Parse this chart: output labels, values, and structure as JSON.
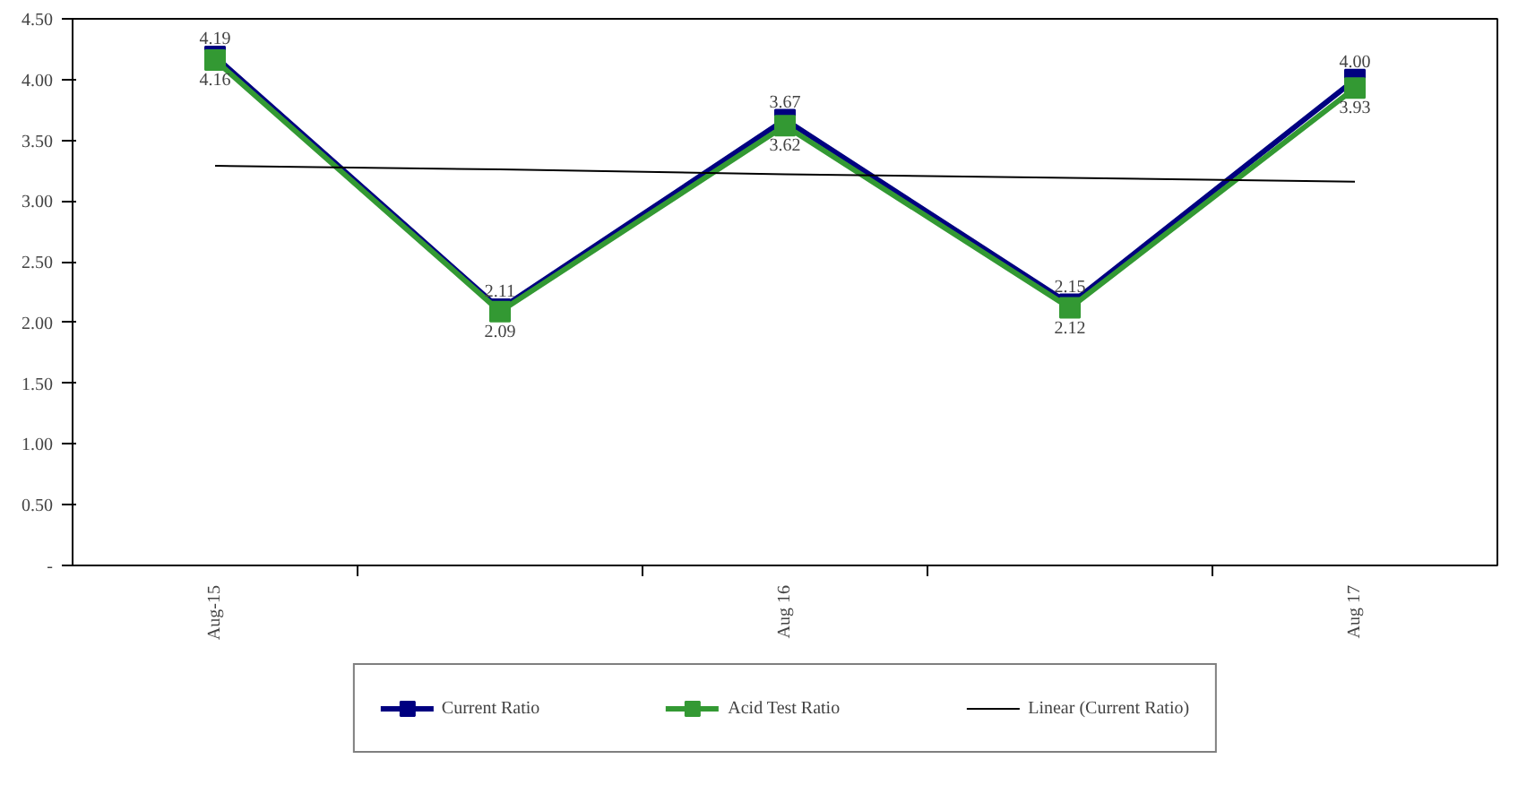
{
  "chart_data": {
    "type": "line",
    "categories": [
      "Aug-15",
      null,
      "Aug 16",
      null,
      "Aug 17"
    ],
    "series": [
      {
        "name": "Current Ratio",
        "color": "#000080",
        "marker": "square",
        "values": [
          4.19,
          2.11,
          3.67,
          2.15,
          4.0
        ],
        "value_labels": [
          "4.19",
          "2.11",
          "3.67",
          "2.15",
          "4.00"
        ]
      },
      {
        "name": "Acid Test Ratio",
        "color": "#339933",
        "marker": "square",
        "values": [
          4.16,
          2.09,
          3.62,
          2.12,
          3.93
        ],
        "value_labels": [
          "4.16",
          "2.09",
          "3.62",
          "2.12",
          "3.93"
        ]
      },
      {
        "name": "Linear (Current Ratio)",
        "type": "line",
        "color": "#000000",
        "marker": "none",
        "values": [
          3.29,
          3.26,
          3.22,
          3.19,
          3.16
        ]
      }
    ],
    "ylim": [
      0,
      4.5
    ],
    "yticks": [
      {
        "value": 0,
        "label": "-"
      },
      {
        "value": 0.5,
        "label": "0.50"
      },
      {
        "value": 1,
        "label": "1.00"
      },
      {
        "value": 1.5,
        "label": "1.50"
      },
      {
        "value": 2,
        "label": "2.00"
      },
      {
        "value": 2.5,
        "label": "2.50"
      },
      {
        "value": 3,
        "label": "3.00"
      },
      {
        "value": 3.5,
        "label": "3.50"
      },
      {
        "value": 4,
        "label": "4.00"
      },
      {
        "value": 4.5,
        "label": "4.50"
      }
    ],
    "grid": false,
    "legend": "bottom"
  }
}
